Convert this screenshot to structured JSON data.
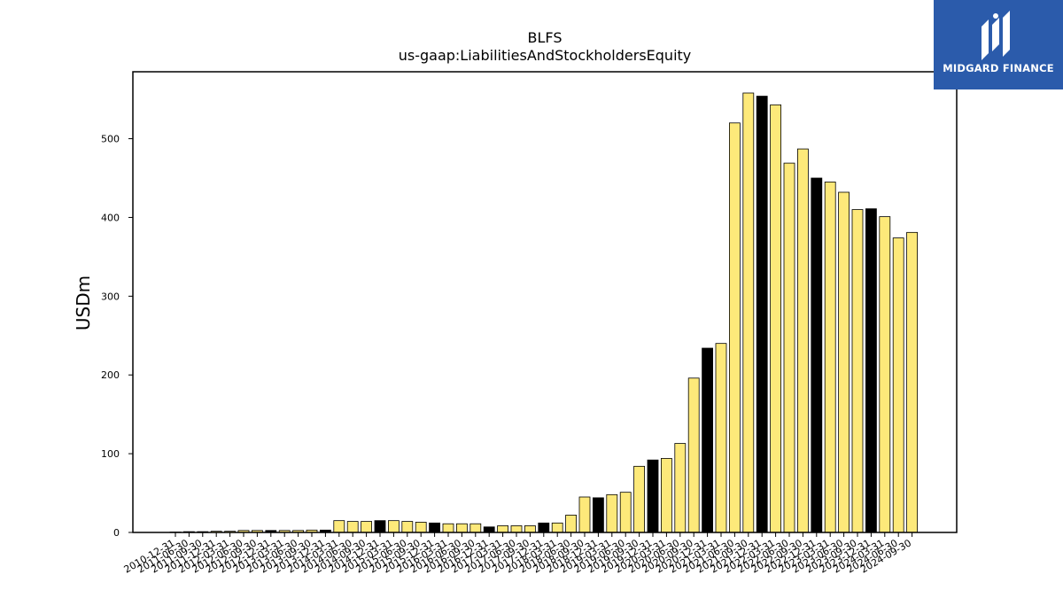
{
  "brand": {
    "name": "MIDGARD FINANCE",
    "mark_icon": "midgard-m-icon",
    "bg_color": "#2b5bab"
  },
  "chart_data": {
    "type": "bar",
    "title": "BLFS",
    "subtitle": "us-gaap:LiabilitiesAndStockholdersEquity",
    "xlabel": "",
    "ylabel": "USDm",
    "ylim": [
      0,
      585
    ],
    "yticks": [
      0,
      100,
      200,
      300,
      400,
      500
    ],
    "grid": false,
    "colors": {
      "default": "#fde97a",
      "annual": "#000000",
      "edge": "#000000"
    },
    "categories": [
      "2010-12-31",
      "2011-06-30",
      "2011-09-30",
      "2011-12-31",
      "2012-03-31",
      "2012-06-30",
      "2012-09-30",
      "2012-12-31",
      "2013-03-31",
      "2013-06-30",
      "2013-09-30",
      "2013-12-31",
      "2014-03-31",
      "2014-06-30",
      "2014-09-30",
      "2014-12-31",
      "2015-03-31",
      "2015-06-30",
      "2015-09-30",
      "2015-12-31",
      "2016-03-31",
      "2016-06-30",
      "2016-09-30",
      "2016-12-31",
      "2017-03-31",
      "2017-06-30",
      "2017-09-30",
      "2017-12-31",
      "2018-03-31",
      "2018-06-30",
      "2018-09-30",
      "2018-12-31",
      "2019-03-31",
      "2019-06-30",
      "2019-09-30",
      "2019-12-31",
      "2020-03-31",
      "2020-06-30",
      "2020-09-30",
      "2020-12-31",
      "2021-03-31",
      "2021-06-30",
      "2021-09-30",
      "2021-12-31",
      "2022-03-31",
      "2022-06-30",
      "2022-09-30",
      "2022-12-31",
      "2023-03-31",
      "2023-06-30",
      "2023-09-30",
      "2023-12-31",
      "2024-03-31",
      "2024-06-30",
      "2024-09-30"
    ],
    "values": [
      0.5,
      1,
      1,
      1.5,
      1.5,
      2.5,
      2.5,
      2.5,
      2.5,
      2.5,
      3,
      3,
      15,
      14,
      14,
      15,
      15,
      14,
      13,
      12,
      11,
      11,
      11,
      7,
      8.5,
      8.5,
      8.5,
      12,
      12,
      22,
      45,
      44,
      48,
      51,
      84,
      92,
      94,
      113,
      196,
      234,
      240,
      520,
      558,
      554,
      543,
      469,
      487,
      450,
      445,
      432,
      410,
      411,
      401,
      374,
      381
    ],
    "highlight": [
      false,
      false,
      false,
      false,
      false,
      false,
      false,
      true,
      false,
      false,
      false,
      true,
      false,
      false,
      false,
      true,
      false,
      false,
      false,
      true,
      false,
      false,
      false,
      true,
      false,
      false,
      false,
      true,
      false,
      false,
      false,
      true,
      false,
      false,
      false,
      true,
      false,
      false,
      false,
      true,
      false,
      false,
      false,
      true,
      false,
      false,
      false,
      true,
      false,
      false,
      false,
      true,
      false,
      false,
      false
    ]
  }
}
